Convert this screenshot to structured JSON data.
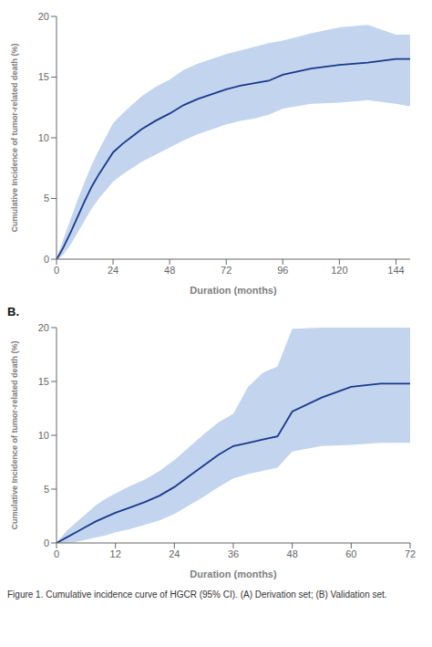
{
  "chart_data": [
    {
      "type": "line",
      "xlabel": "Duration (months)",
      "ylabel": "Cumulative Incidence of tumor-related death (%)",
      "xlim": [
        0,
        150
      ],
      "ylim": [
        0,
        20
      ],
      "xticks": [
        0,
        24,
        48,
        72,
        96,
        120,
        144
      ],
      "yticks": [
        0,
        5,
        10,
        15,
        20
      ],
      "color": "#1a3a8a",
      "ci_color": "#aec6e8",
      "grid": false,
      "x": [
        0,
        1,
        3,
        6,
        9,
        12,
        15,
        18,
        21,
        24,
        28,
        32,
        36,
        42,
        48,
        54,
        60,
        66,
        72,
        78,
        84,
        90,
        96,
        108,
        120,
        132,
        144,
        150
      ],
      "values": [
        0,
        0.3,
        1.0,
        2.2,
        3.5,
        4.8,
        6.0,
        7.0,
        7.9,
        8.8,
        9.5,
        10.1,
        10.7,
        11.4,
        12.0,
        12.7,
        13.2,
        13.6,
        14.0,
        14.3,
        14.5,
        14.7,
        15.2,
        15.7,
        16.0,
        16.2,
        16.5,
        16.5
      ],
      "ci_lower": [
        0,
        0.05,
        0.4,
        1.2,
        2.2,
        3.2,
        4.2,
        5.0,
        5.7,
        6.4,
        7.0,
        7.5,
        8.0,
        8.6,
        9.2,
        9.8,
        10.3,
        10.7,
        11.1,
        11.4,
        11.6,
        11.9,
        12.4,
        12.8,
        12.9,
        13.1,
        12.8,
        12.6
      ],
      "ci_upper": [
        0,
        0.6,
        1.7,
        3.3,
        4.9,
        6.4,
        7.8,
        9.0,
        10.1,
        11.2,
        12.0,
        12.7,
        13.4,
        14.2,
        14.8,
        15.6,
        16.1,
        16.5,
        16.9,
        17.2,
        17.5,
        17.8,
        18.0,
        18.6,
        19.1,
        19.3,
        18.5,
        18.5
      ]
    },
    {
      "type": "line",
      "annotations": [
        "B."
      ],
      "xlabel": "Duration (months)",
      "ylabel": "Cumulative Incidence of tumor-related death (%)",
      "xlim": [
        0,
        72
      ],
      "ylim": [
        0,
        20
      ],
      "xticks": [
        0,
        12,
        24,
        36,
        48,
        60,
        72
      ],
      "yticks": [
        0,
        5,
        10,
        15,
        20
      ],
      "color": "#1a3a8a",
      "ci_color": "#aec6e8",
      "grid": false,
      "x": [
        0,
        2,
        4,
        6,
        8,
        10,
        12,
        15,
        18,
        21,
        24,
        27,
        30,
        33,
        36,
        39,
        42,
        45,
        48,
        54,
        60,
        66,
        72
      ],
      "values": [
        0,
        0.5,
        1.0,
        1.5,
        2.0,
        2.4,
        2.8,
        3.3,
        3.8,
        4.4,
        5.2,
        6.2,
        7.2,
        8.2,
        9.0,
        9.3,
        9.6,
        9.9,
        12.2,
        13.5,
        14.5,
        14.8,
        14.8
      ],
      "ci_lower": [
        0,
        0.0,
        0.1,
        0.3,
        0.5,
        0.7,
        1.0,
        1.3,
        1.7,
        2.1,
        2.7,
        3.5,
        4.3,
        5.2,
        6.0,
        6.4,
        6.7,
        7.0,
        8.5,
        9.0,
        9.1,
        9.3,
        9.3
      ],
      "ci_upper": [
        0,
        1.1,
        1.9,
        2.7,
        3.5,
        4.1,
        4.6,
        5.3,
        5.9,
        6.7,
        7.7,
        8.9,
        10.1,
        11.2,
        12.0,
        14.5,
        15.8,
        16.4,
        19.9,
        20.0,
        20.0,
        20.0,
        20.0
      ]
    }
  ],
  "caption": "Figure 1. Cumulative incidence curve of HGCR (95% CI). (A) Derivation set; (B) Validation set."
}
